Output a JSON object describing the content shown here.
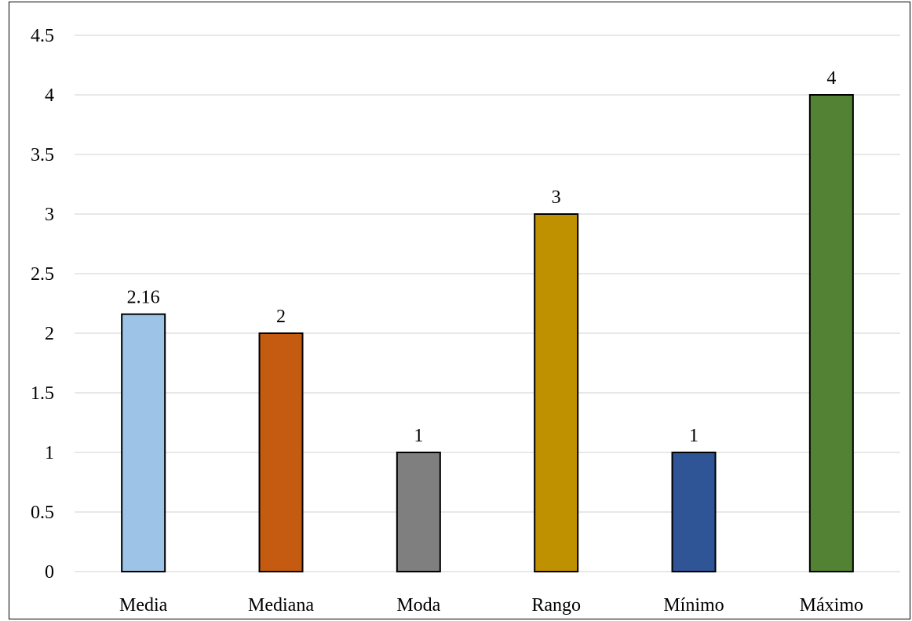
{
  "chart_data": {
    "type": "bar",
    "title": "",
    "xlabel": "",
    "ylabel": "",
    "categories": [
      "Media",
      "Mediana",
      "Moda",
      "Rango",
      "Mínimo",
      "Máximo"
    ],
    "values": [
      2.16,
      2,
      1,
      3,
      1,
      4
    ],
    "data_labels": [
      "2.16",
      "2",
      "1",
      "3",
      "1",
      "4"
    ],
    "colors": [
      "#9dc3e6",
      "#c55a11",
      "#7f7f7f",
      "#bf9000",
      "#2f5597",
      "#548235"
    ],
    "ylim": [
      0,
      4.5
    ],
    "yticks": [
      "0",
      "0.5",
      "1",
      "1.5",
      "2",
      "2.5",
      "3",
      "3.5",
      "4",
      "4.5"
    ],
    "grid": true,
    "legend": "none"
  }
}
